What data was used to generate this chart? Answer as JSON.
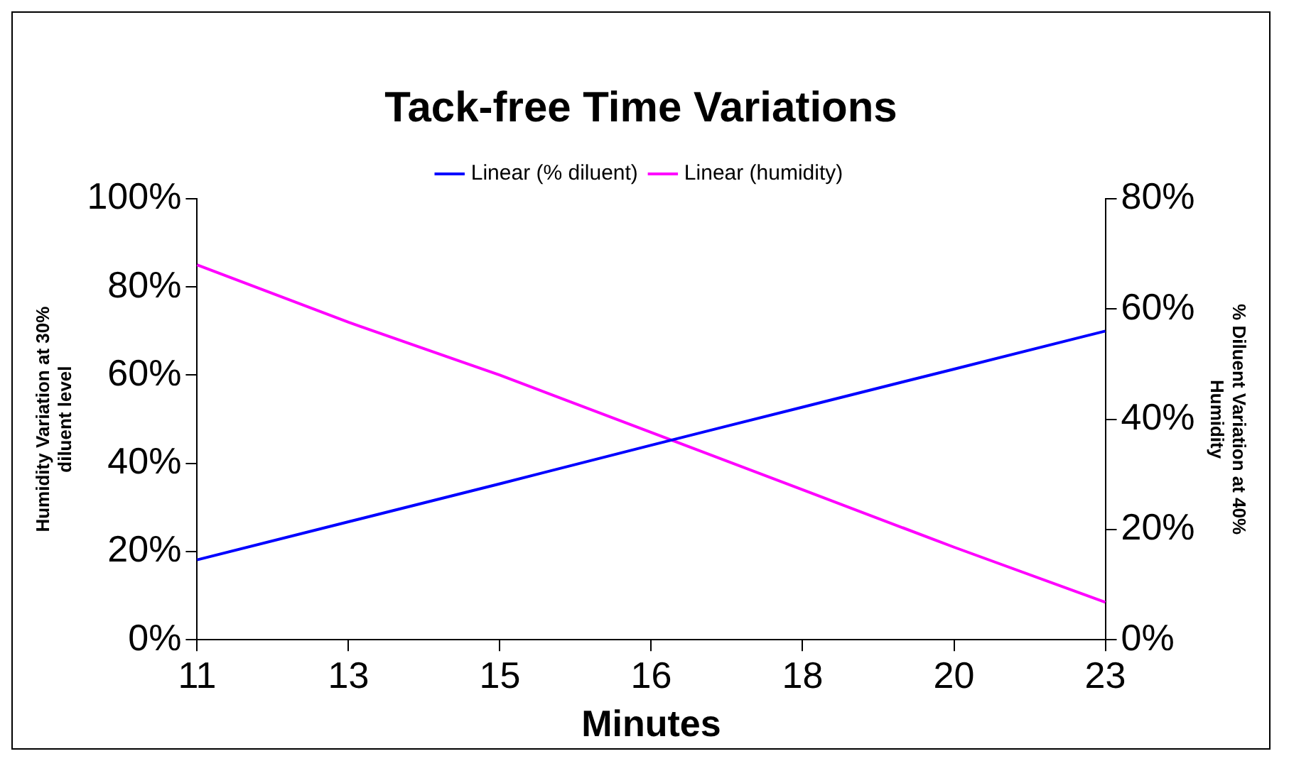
{
  "chart_data": {
    "type": "line",
    "title": "Tack-free Time Variations",
    "xlabel": "Minutes",
    "ylabel": "Humidity Variation at 30%\ndiluent level",
    "y2label": "% Diluent Variation at 40%\nHumidity",
    "categories": [
      "11",
      "13",
      "15",
      "16",
      "18",
      "20",
      "23"
    ],
    "series": [
      {
        "name": "Linear (% diluent)",
        "color": "#0000ff",
        "axis": "y2",
        "values": [
          14.5,
          21.4,
          28.3,
          35.3,
          42.2,
          49.1,
          56
        ]
      },
      {
        "name": "Linear (humidity)",
        "color": "#ff00ff",
        "values": [
          85,
          72,
          60,
          47,
          34,
          21,
          8.5
        ]
      }
    ],
    "ylim": [
      0,
      100
    ],
    "yticks": [
      {
        "value": 0,
        "label": "0%"
      },
      {
        "value": 20,
        "label": "20%"
      },
      {
        "value": 40,
        "label": "40%"
      },
      {
        "value": 60,
        "label": "60%"
      },
      {
        "value": 80,
        "label": "80%"
      },
      {
        "value": 100,
        "label": "100%"
      }
    ],
    "y2lim": [
      0,
      80
    ],
    "y2ticks": [
      {
        "value": 0,
        "label": "0%"
      },
      {
        "value": 20,
        "label": "20%"
      },
      {
        "value": 40,
        "label": "40%"
      },
      {
        "value": 60,
        "label": "60%"
      },
      {
        "value": 80,
        "label": "80%"
      }
    ],
    "grid": false,
    "legend": "top",
    "marker": "none",
    "line_style": "solid"
  }
}
